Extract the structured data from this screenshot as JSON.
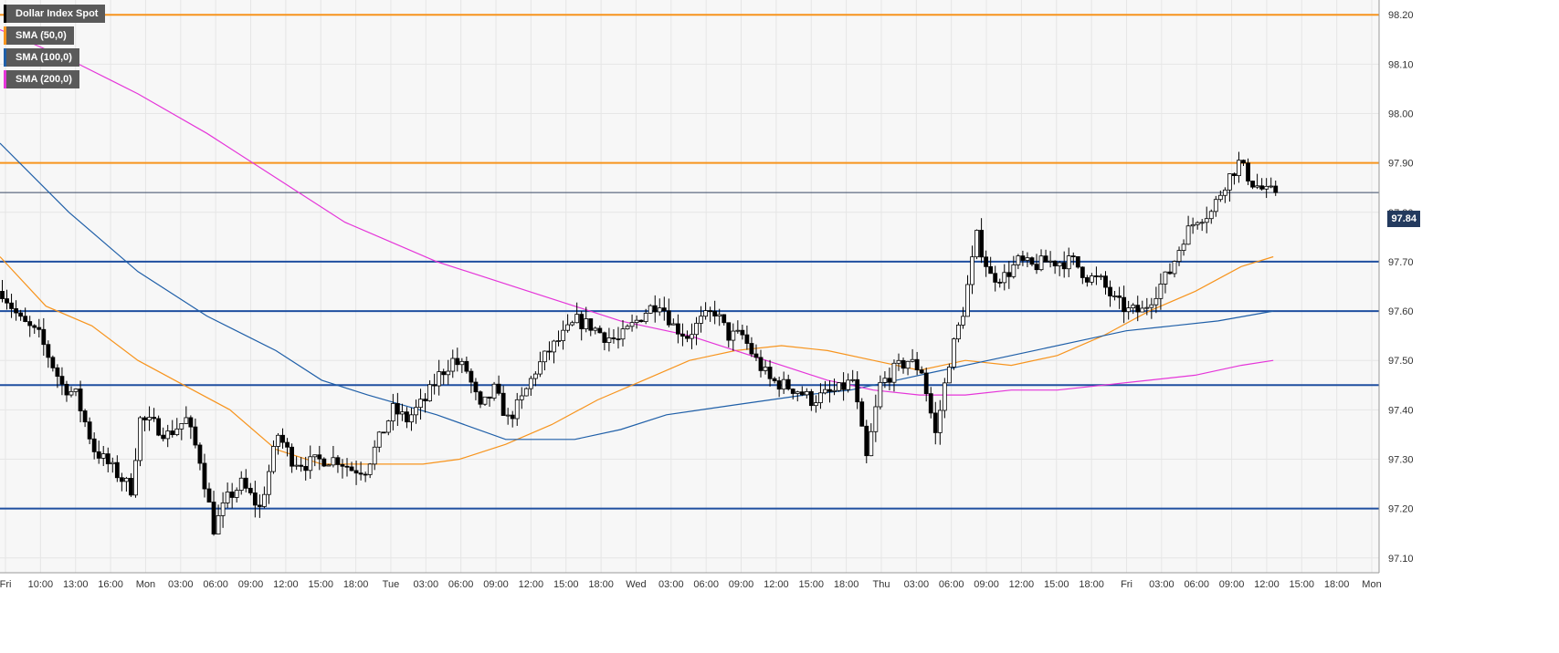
{
  "legend": {
    "title": "Dollar Index Spot",
    "title_color": "#000000",
    "items": [
      {
        "label": "SMA (50,0)",
        "color": "#f7941d"
      },
      {
        "label": "SMA (100,0)",
        "color": "#1f5fa8"
      },
      {
        "label": "SMA (200,0)",
        "color": "#e535d9"
      }
    ]
  },
  "current_price_label": "97.84",
  "colors": {
    "background": "#f7f7f7",
    "grid": "#e6e6e6",
    "resistance_line": "#f7941d",
    "support_line": "#1f4fa0",
    "price_line": "#3a4a66",
    "badge": "#233a5e",
    "candle_up": "#ffffff",
    "candle_down": "#000000"
  },
  "chart_data": {
    "type": "candlestick",
    "title": "Dollar Index Spot",
    "ylim": [
      97.07,
      98.23
    ],
    "y_ticks": [
      "97.10",
      "97.20",
      "97.30",
      "97.40",
      "97.50",
      "97.60",
      "97.70",
      "97.80",
      "97.90",
      "98.00",
      "98.10",
      "98.20"
    ],
    "x_ticks": [
      "Fri",
      "10:00",
      "13:00",
      "16:00",
      "Mon",
      "03:00",
      "06:00",
      "09:00",
      "12:00",
      "15:00",
      "18:00",
      "Tue",
      "03:00",
      "06:00",
      "09:00",
      "12:00",
      "15:00",
      "18:00",
      "Wed",
      "03:00",
      "06:00",
      "09:00",
      "12:00",
      "15:00",
      "18:00",
      "Thu",
      "03:00",
      "06:00",
      "09:00",
      "12:00",
      "15:00",
      "18:00",
      "Fri",
      "03:00",
      "06:00",
      "09:00",
      "12:00",
      "15:00",
      "18:00",
      "Mon"
    ],
    "horizontal_levels": [
      {
        "value": 98.2,
        "kind": "resistance"
      },
      {
        "value": 97.9,
        "kind": "resistance"
      },
      {
        "value": 97.7,
        "kind": "support"
      },
      {
        "value": 97.6,
        "kind": "support"
      },
      {
        "value": 97.45,
        "kind": "support"
      },
      {
        "value": 97.2,
        "kind": "support"
      }
    ],
    "last_price": 97.84,
    "candle_close_path": [
      [
        0,
        97.64
      ],
      [
        4,
        97.58
      ],
      [
        8,
        97.55
      ],
      [
        13,
        97.45
      ],
      [
        16,
        97.43
      ],
      [
        20,
        97.32
      ],
      [
        24,
        97.28
      ],
      [
        28,
        97.24
      ],
      [
        30,
        97.38
      ],
      [
        33,
        97.37
      ],
      [
        36,
        97.35
      ],
      [
        40,
        97.38
      ],
      [
        43,
        97.3
      ],
      [
        46,
        97.16
      ],
      [
        49,
        97.22
      ],
      [
        52,
        97.25
      ],
      [
        56,
        97.2
      ],
      [
        60,
        97.35
      ],
      [
        63,
        97.3
      ],
      [
        66,
        97.29
      ],
      [
        70,
        97.3
      ],
      [
        73,
        97.3
      ],
      [
        76,
        97.28
      ],
      [
        79,
        97.28
      ],
      [
        82,
        97.34
      ],
      [
        85,
        97.4
      ],
      [
        88,
        97.38
      ],
      [
        92,
        97.42
      ],
      [
        95,
        97.47
      ],
      [
        98,
        97.5
      ],
      [
        101,
        97.48
      ],
      [
        104,
        97.4
      ],
      [
        107,
        97.44
      ],
      [
        110,
        97.38
      ],
      [
        113,
        97.42
      ],
      [
        116,
        97.48
      ],
      [
        119,
        97.52
      ],
      [
        122,
        97.55
      ],
      [
        125,
        97.58
      ],
      [
        128,
        97.57
      ],
      [
        131,
        97.55
      ],
      [
        134,
        97.54
      ],
      [
        137,
        97.57
      ],
      [
        140,
        97.6
      ],
      [
        143,
        97.62
      ],
      [
        146,
        97.57
      ],
      [
        149,
        97.55
      ],
      [
        152,
        97.58
      ],
      [
        155,
        97.6
      ],
      [
        158,
        97.55
      ],
      [
        161,
        97.55
      ],
      [
        164,
        97.5
      ],
      [
        167,
        97.46
      ],
      [
        170,
        97.45
      ],
      [
        173,
        97.44
      ],
      [
        176,
        97.42
      ],
      [
        179,
        97.43
      ],
      [
        182,
        97.44
      ],
      [
        185,
        97.46
      ],
      [
        188,
        97.3
      ],
      [
        191,
        97.45
      ],
      [
        194,
        97.48
      ],
      [
        197,
        97.5
      ],
      [
        200,
        97.48
      ],
      [
        203,
        97.35
      ],
      [
        206,
        97.5
      ],
      [
        209,
        97.6
      ],
      [
        212,
        97.75
      ],
      [
        215,
        97.67
      ],
      [
        218,
        97.67
      ],
      [
        221,
        97.7
      ],
      [
        224,
        97.69
      ],
      [
        227,
        97.7
      ],
      [
        230,
        97.7
      ],
      [
        233,
        97.7
      ],
      [
        236,
        97.67
      ],
      [
        239,
        97.66
      ],
      [
        242,
        97.62
      ],
      [
        245,
        97.6
      ],
      [
        248,
        97.6
      ],
      [
        251,
        97.64
      ],
      [
        254,
        97.68
      ],
      [
        257,
        97.75
      ],
      [
        260,
        97.79
      ],
      [
        263,
        97.8
      ],
      [
        266,
        97.86
      ],
      [
        269,
        97.9
      ],
      [
        272,
        97.86
      ],
      [
        275,
        97.84
      ],
      [
        277,
        97.84
      ]
    ],
    "series": [
      {
        "name": "SMA (50,0)",
        "color": "#f7941d",
        "points": [
          [
            0,
            97.71
          ],
          [
            10,
            97.61
          ],
          [
            20,
            97.57
          ],
          [
            30,
            97.5
          ],
          [
            40,
            97.45
          ],
          [
            50,
            97.4
          ],
          [
            60,
            97.32
          ],
          [
            70,
            97.29
          ],
          [
            80,
            97.29
          ],
          [
            92,
            97.29
          ],
          [
            100,
            97.3
          ],
          [
            110,
            97.33
          ],
          [
            120,
            97.37
          ],
          [
            130,
            97.42
          ],
          [
            140,
            97.46
          ],
          [
            150,
            97.5
          ],
          [
            160,
            97.52
          ],
          [
            170,
            97.53
          ],
          [
            180,
            97.52
          ],
          [
            190,
            97.5
          ],
          [
            200,
            97.48
          ],
          [
            210,
            97.5
          ],
          [
            220,
            97.49
          ],
          [
            230,
            97.51
          ],
          [
            240,
            97.55
          ],
          [
            250,
            97.6
          ],
          [
            260,
            97.64
          ],
          [
            270,
            97.69
          ],
          [
            277,
            97.71
          ]
        ]
      },
      {
        "name": "SMA (100,0)",
        "color": "#1f5fa8",
        "points": [
          [
            0,
            97.94
          ],
          [
            15,
            97.8
          ],
          [
            30,
            97.68
          ],
          [
            45,
            97.59
          ],
          [
            60,
            97.52
          ],
          [
            70,
            97.46
          ],
          [
            80,
            97.43
          ],
          [
            95,
            97.39
          ],
          [
            110,
            97.34
          ],
          [
            125,
            97.34
          ],
          [
            135,
            97.36
          ],
          [
            145,
            97.39
          ],
          [
            160,
            97.41
          ],
          [
            175,
            97.43
          ],
          [
            185,
            97.44
          ],
          [
            195,
            97.46
          ],
          [
            205,
            97.48
          ],
          [
            215,
            97.5
          ],
          [
            225,
            97.52
          ],
          [
            235,
            97.54
          ],
          [
            245,
            97.56
          ],
          [
            255,
            97.57
          ],
          [
            265,
            97.58
          ],
          [
            277,
            97.6
          ]
        ]
      },
      {
        "name": "SMA (200,0)",
        "color": "#e535d9",
        "points": [
          [
            0,
            98.17
          ],
          [
            15,
            98.11
          ],
          [
            30,
            98.04
          ],
          [
            45,
            97.96
          ],
          [
            60,
            97.87
          ],
          [
            75,
            97.78
          ],
          [
            95,
            97.7
          ],
          [
            115,
            97.64
          ],
          [
            135,
            97.58
          ],
          [
            150,
            97.55
          ],
          [
            160,
            97.52
          ],
          [
            170,
            97.49
          ],
          [
            180,
            97.46
          ],
          [
            190,
            97.44
          ],
          [
            200,
            97.43
          ],
          [
            210,
            97.43
          ],
          [
            220,
            97.44
          ],
          [
            230,
            97.44
          ],
          [
            240,
            97.45
          ],
          [
            250,
            97.46
          ],
          [
            260,
            97.47
          ],
          [
            270,
            97.49
          ],
          [
            277,
            97.5
          ]
        ]
      }
    ]
  }
}
